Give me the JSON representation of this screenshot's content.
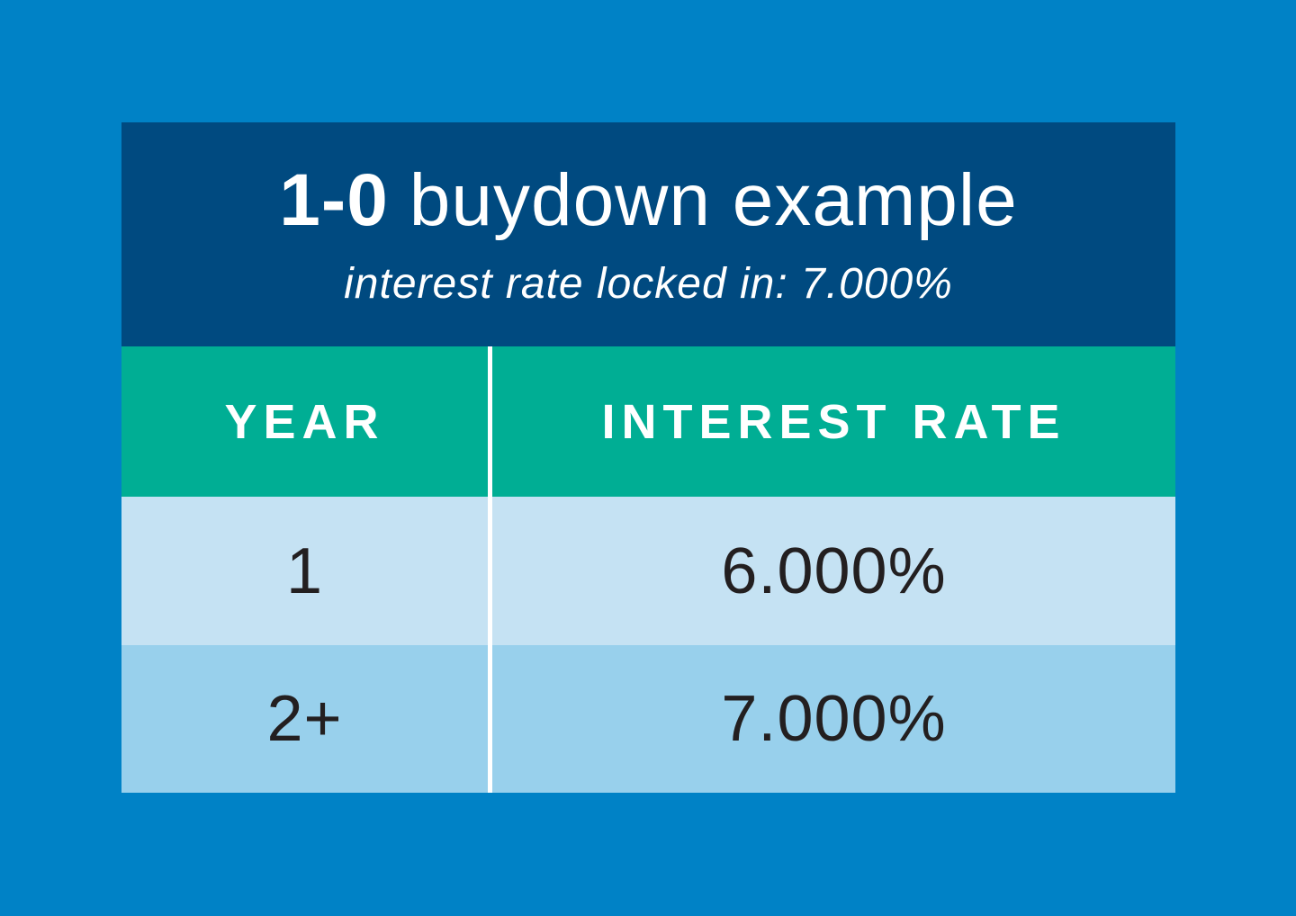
{
  "colors": {
    "page_background": "#0082c6",
    "card_header_background": "#004a80",
    "table_header_background": "#00ae94",
    "row_colors": [
      "#c5e2f3",
      "#98d0ec"
    ],
    "header_text": "#ffffff",
    "data_text": "#231f20",
    "divider": "#ffffff"
  },
  "header": {
    "title_bold": "1-0",
    "title_light": "buydown example",
    "subtitle": "interest rate locked in: 7.000%"
  },
  "table": {
    "columns": [
      "YEAR",
      "INTEREST RATE"
    ],
    "rows": [
      {
        "year": "1",
        "rate": "6.000%"
      },
      {
        "year": "2+",
        "rate": "7.000%"
      }
    ]
  },
  "chart_data": {
    "type": "table",
    "title": "1-0 buydown example",
    "subtitle": "interest rate locked in: 7.000%",
    "columns": [
      "YEAR",
      "INTEREST RATE"
    ],
    "rows": [
      [
        "1",
        "6.000%"
      ],
      [
        "2+",
        "7.000%"
      ]
    ]
  }
}
